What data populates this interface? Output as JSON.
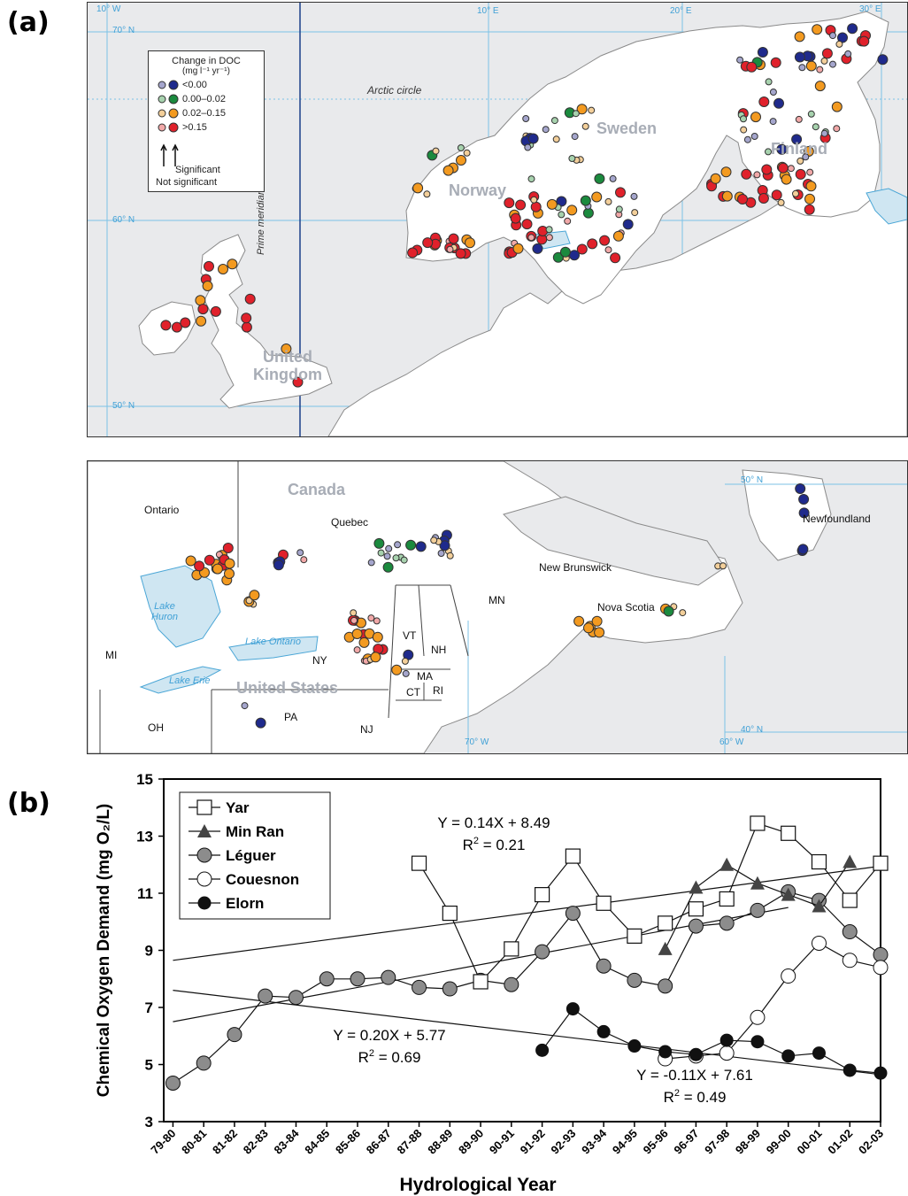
{
  "panel_labels": {
    "a": "(a)",
    "b": "(b)"
  },
  "colors": {
    "neg": "#1f2a8c",
    "neg_ns": "#a5a6cd",
    "low": "#1b8a3e",
    "low_ns": "#a7d2ae",
    "mid": "#f39a20",
    "mid_ns": "#f3cf9a",
    "high": "#e0212b",
    "high_ns": "#f1a8a8",
    "water": "#cfe6f2",
    "land": "#ffffff",
    "sea": "#e9eaec",
    "grid": "#7cc2e6"
  },
  "map_europe": {
    "legend": {
      "title_line1": "Change in DOC",
      "title_line2": "(mg l⁻¹ yr⁻¹)",
      "items": [
        {
          "label": "<0.00",
          "color_key": "neg"
        },
        {
          "label": "0.00–0.02",
          "color_key": "low"
        },
        {
          "label": "0.02–0.15",
          "color_key": "mid"
        },
        {
          "label": ">0.15",
          "color_key": "high"
        }
      ],
      "significant": "Significant",
      "not_significant": "Not significant"
    },
    "lon_labels": [
      "10° W",
      "10° E",
      "20° E",
      "30° E"
    ],
    "lat_labels": [
      "70° N",
      "60° N",
      "50° N"
    ],
    "arctic_circle": "Arctic circle",
    "prime_meridian": "Prime meridian",
    "countries": [
      "Norway",
      "Sweden",
      "Finland",
      "United Kingdom"
    ]
  },
  "map_america": {
    "big_labels": [
      "Canada",
      "United States"
    ],
    "region_labels": [
      "Ontario",
      "Quebec",
      "Newfoundland",
      "New Brunswick",
      "Nova Scotia",
      "MN",
      "VT",
      "NH",
      "MA",
      "CT",
      "RI",
      "NY",
      "PA",
      "NJ",
      "OH",
      "MI"
    ],
    "lake_labels": [
      "Lake Huron",
      "Lake Ontario",
      "Lake Erie"
    ],
    "lat_labels": [
      "50° N",
      "40° N"
    ],
    "lon_labels": [
      "70° W",
      "60° W"
    ]
  },
  "chart_data": {
    "type": "line",
    "ylabel": "Chemical Oxygen Demand (mg O₂/L)",
    "xlabel": "Hydrological Year",
    "ylim": [
      3,
      15
    ],
    "yticks": [
      3,
      5,
      7,
      9,
      11,
      13,
      15
    ],
    "categories": [
      "79-80",
      "80-81",
      "81-82",
      "82-83",
      "83-84",
      "84-85",
      "85-86",
      "86-87",
      "87-88",
      "88-89",
      "89-90",
      "90-91",
      "91-92",
      "92-93",
      "93-94",
      "94-95",
      "95-96",
      "96-97",
      "97-98",
      "98-99",
      "99-00",
      "00-01",
      "01-02",
      "02-03"
    ],
    "series": [
      {
        "name": "Yar",
        "marker": "square-open",
        "x": [
          8.3,
          9.3,
          10.3,
          11.3,
          12.3,
          13.3,
          14.3,
          15.3,
          16.3,
          17.3,
          18.3,
          19.3,
          20.3,
          21.3,
          22.3,
          23.3
        ],
        "y": [
          12.05,
          10.3,
          7.9,
          9.05,
          10.95,
          12.3,
          10.65,
          9.5,
          9.95,
          10.45,
          10.8,
          13.45,
          13.1,
          12.1,
          10.75,
          12.05
        ]
      },
      {
        "name": "Min Ran",
        "marker": "triangle-filled",
        "x": [
          16.3,
          17.3,
          18.3,
          19.3,
          20.3,
          21.3,
          22.3
        ],
        "y": [
          9.05,
          11.2,
          12.0,
          11.35,
          10.95,
          10.55,
          12.1
        ]
      },
      {
        "name": "Léguer",
        "marker": "circle-gray",
        "x": [
          0.3,
          1.3,
          2.3,
          3.3,
          4.3,
          5.3,
          6.3,
          7.3,
          8.3,
          9.3,
          10.3,
          11.3,
          12.3,
          13.3,
          14.3,
          15.3,
          16.3,
          17.3,
          18.3,
          19.3,
          20.3,
          21.3,
          22.3,
          23.3
        ],
        "y": [
          4.35,
          5.05,
          6.05,
          7.4,
          7.35,
          8.0,
          8.0,
          8.05,
          7.7,
          7.65,
          7.95,
          7.8,
          8.95,
          10.3,
          8.45,
          7.95,
          7.75,
          9.85,
          9.95,
          10.4,
          11.05,
          10.75,
          9.65,
          8.85
        ]
      },
      {
        "name": "Couesnon",
        "marker": "circle-open",
        "x": [
          16.3,
          17.3,
          18.3,
          19.3,
          20.3,
          21.3,
          22.3,
          23.3
        ],
        "y": [
          5.2,
          5.3,
          5.4,
          6.65,
          8.1,
          9.25,
          8.65,
          8.4
        ]
      },
      {
        "name": "Elorn",
        "marker": "circle-black",
        "x": [
          12.3,
          13.3,
          14.3,
          15.3,
          16.3,
          17.3,
          18.3,
          19.3,
          20.3,
          21.3,
          22.3,
          23.3
        ],
        "y": [
          5.5,
          6.95,
          6.15,
          5.65,
          5.45,
          5.35,
          5.85,
          5.8,
          5.3,
          5.4,
          4.8,
          4.7
        ]
      }
    ],
    "trendlines": [
      {
        "from": [
          0.3,
          8.65
        ],
        "to": [
          23.3,
          11.95
        ]
      },
      {
        "from": [
          0.3,
          6.5
        ],
        "to": [
          20.3,
          10.5
        ]
      },
      {
        "from": [
          0.3,
          7.6
        ],
        "to": [
          23.3,
          4.65
        ]
      }
    ],
    "annotations": [
      {
        "eq": "Y = 0.14X + 8.49",
        "r2": "0.21"
      },
      {
        "eq": "Y = 0.20X + 5.77",
        "r2": "0.69"
      },
      {
        "eq": "Y = -0.11X + 7.61",
        "r2": "0.49"
      }
    ],
    "r2_prefix": "R",
    "r2_exp": "2",
    "r2_sep": " = "
  }
}
